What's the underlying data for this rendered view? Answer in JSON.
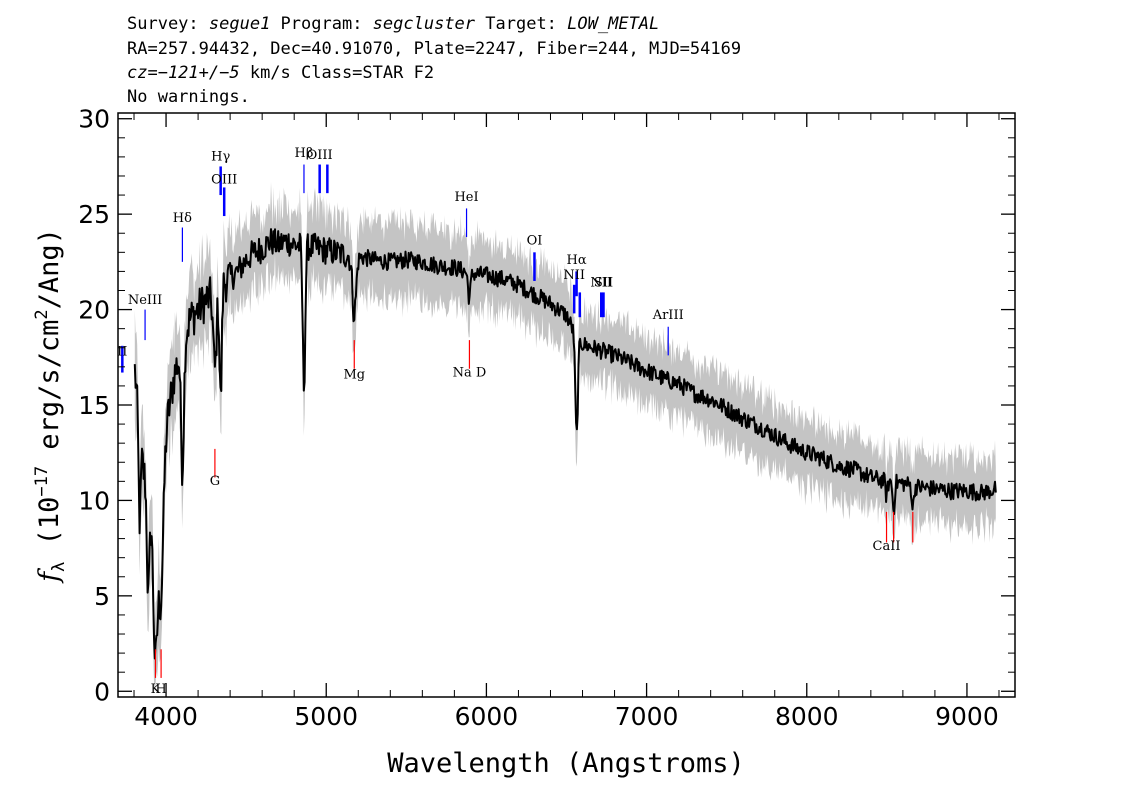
{
  "header": {
    "line1": {
      "survey_label": "Survey: ",
      "survey": "segue1",
      "program_label": " Program: ",
      "program": "segcluster",
      "target_label": " Target: ",
      "target": "LOW_METAL"
    },
    "line2": "RA=257.94432, Dec=40.91070, Plate=2247, Fiber=244, MJD=54169",
    "line3": {
      "cz": "cz=−121+/−5",
      "rest": " km/s Class=STAR F2"
    },
    "line4": "No warnings."
  },
  "chart_data": {
    "type": "line",
    "xlabel": "Wavelength (Angstroms)",
    "ylabel": "f_λ (10^-17 erg/s/cm^2/Ang)",
    "ylabel_parts": {
      "f": "f",
      "sub": "λ",
      "unit_a": " (10",
      "exp": "−17",
      "unit_b": " erg/s/cm",
      "exp2": "2",
      "unit_c": "/Ang)"
    },
    "xlim": [
      3700,
      9300
    ],
    "ylim": [
      -0.3,
      30.3
    ],
    "xticks": [
      4000,
      5000,
      6000,
      7000,
      8000,
      9000
    ],
    "yticks": [
      0,
      5,
      10,
      15,
      20,
      25,
      30
    ],
    "x_minor_step": 200,
    "y_minor_step": 1,
    "spectrum_knots": [
      [
        3805,
        16.8
      ],
      [
        3830,
        14.5
      ],
      [
        3860,
        11.5
      ],
      [
        3900,
        10.2
      ],
      [
        3950,
        12.0
      ],
      [
        4000,
        13.8
      ],
      [
        4050,
        16.5
      ],
      [
        4100,
        18.2
      ],
      [
        4150,
        19.5
      ],
      [
        4200,
        20.0
      ],
      [
        4250,
        20.5
      ],
      [
        4300,
        20.8
      ],
      [
        4350,
        21.3
      ],
      [
        4400,
        21.7
      ],
      [
        4450,
        22.0
      ],
      [
        4500,
        22.6
      ],
      [
        4550,
        23.0
      ],
      [
        4600,
        23.2
      ],
      [
        4650,
        23.6
      ],
      [
        4700,
        23.4
      ],
      [
        4750,
        23.6
      ],
      [
        4800,
        23.4
      ],
      [
        4900,
        23.3
      ],
      [
        5000,
        23.1
      ],
      [
        5100,
        22.9
      ],
      [
        5200,
        22.8
      ],
      [
        5300,
        22.6
      ],
      [
        5400,
        22.5
      ],
      [
        5500,
        22.6
      ],
      [
        5600,
        22.5
      ],
      [
        5700,
        22.3
      ],
      [
        5800,
        22.2
      ],
      [
        5900,
        21.9
      ],
      [
        6000,
        21.8
      ],
      [
        6100,
        21.6
      ],
      [
        6200,
        21.3
      ],
      [
        6300,
        20.8
      ],
      [
        6400,
        20.3
      ],
      [
        6500,
        19.7
      ],
      [
        6560,
        18.6
      ],
      [
        6600,
        18.2
      ],
      [
        6700,
        17.9
      ],
      [
        6800,
        17.6
      ],
      [
        6900,
        17.2
      ],
      [
        7000,
        16.8
      ],
      [
        7100,
        16.4
      ],
      [
        7200,
        16.1
      ],
      [
        7300,
        15.6
      ],
      [
        7400,
        15.3
      ],
      [
        7500,
        14.8
      ],
      [
        7600,
        14.3
      ],
      [
        7700,
        13.9
      ],
      [
        7800,
        13.4
      ],
      [
        7900,
        12.9
      ],
      [
        8000,
        12.5
      ],
      [
        8100,
        12.2
      ],
      [
        8200,
        11.8
      ],
      [
        8300,
        11.6
      ],
      [
        8400,
        11.2
      ],
      [
        8500,
        11.0
      ],
      [
        8600,
        10.9
      ],
      [
        8700,
        10.7
      ],
      [
        8800,
        10.6
      ],
      [
        8900,
        10.5
      ],
      [
        9000,
        10.5
      ],
      [
        9100,
        10.4
      ],
      [
        9180,
        10.6
      ]
    ],
    "absorption_features": [
      {
        "center": 3934,
        "depth": 9.5,
        "width": 14
      },
      {
        "center": 3969,
        "depth": 7.5,
        "width": 14
      },
      {
        "center": 3835,
        "depth": 5.0,
        "width": 7
      },
      {
        "center": 3889,
        "depth": 5.5,
        "width": 8
      },
      {
        "center": 4102,
        "depth": 6.5,
        "width": 9
      },
      {
        "center": 4305,
        "depth": 4.0,
        "width": 10
      },
      {
        "center": 4341,
        "depth": 6.0,
        "width": 7
      },
      {
        "center": 4861,
        "depth": 7.3,
        "width": 8
      },
      {
        "center": 5175,
        "depth": 3.0,
        "width": 12
      },
      {
        "center": 5893,
        "depth": 1.3,
        "width": 8
      },
      {
        "center": 6563,
        "depth": 5.2,
        "width": 8
      },
      {
        "center": 8498,
        "depth": 0.8,
        "width": 6
      },
      {
        "center": 8542,
        "depth": 1.5,
        "width": 6
      },
      {
        "center": 8662,
        "depth": 1.2,
        "width": 6
      }
    ],
    "series": [
      {
        "role": "flux",
        "color": "#000000"
      },
      {
        "role": "error_band",
        "color": "#c4c4c4"
      }
    ],
    "emission_lines": [
      {
        "label": "",
        "wavelength": 3727,
        "y0": 16.7,
        "y1": 18.1,
        "label_y": null,
        "color": "#0000ff",
        "thick": true
      },
      {
        "label": "II",
        "wavelength": 3727,
        "y0": null,
        "y1": null,
        "label_y": 17.6,
        "color": "#0000ff",
        "thick": true
      },
      {
        "label": "NeIII",
        "wavelength": 3869,
        "y0": 18.4,
        "y1": 20.0,
        "label_y": 20.3,
        "color": "#0000ff",
        "thick": false
      },
      {
        "label": "Hδ",
        "wavelength": 4102,
        "y0": 22.5,
        "y1": 24.3,
        "label_y": 24.6,
        "color": "#0000ff",
        "thick": false
      },
      {
        "label": "Hγ",
        "wavelength": 4341,
        "y0": 26.0,
        "y1": 27.5,
        "label_y": 27.8,
        "color": "#0000ff",
        "thick": true
      },
      {
        "label": "OIII",
        "wavelength": 4363,
        "y0": 24.9,
        "y1": 26.4,
        "label_y": 26.6,
        "color": "#0000ff",
        "thick": true
      },
      {
        "label": "Hβ",
        "wavelength": 4861,
        "y0": 26.1,
        "y1": 27.6,
        "label_y": 28.0,
        "color": "#0000ff",
        "thick": false
      },
      {
        "label": "OIII",
        "wavelength": 4959,
        "y0": 26.1,
        "y1": 27.6,
        "label_y": 27.9,
        "color": "#0000ff",
        "thick": true
      },
      {
        "label": "",
        "wavelength": 5007,
        "y0": 26.1,
        "y1": 27.6,
        "label_y": null,
        "color": "#0000ff",
        "thick": true
      },
      {
        "label": "HeI",
        "wavelength": 5876,
        "y0": 23.8,
        "y1": 25.3,
        "label_y": 25.7,
        "color": "#0000ff",
        "thick": false
      },
      {
        "label": "OI",
        "wavelength": 6300,
        "y0": 21.5,
        "y1": 23.0,
        "label_y": 23.4,
        "color": "#0000ff",
        "thick": true
      },
      {
        "label": "NII",
        "wavelength": 6548,
        "y0": 19.8,
        "y1": 21.3,
        "label_y": 21.6,
        "color": "#0000ff",
        "thick": true
      },
      {
        "label": "Hα",
        "wavelength": 6563,
        "y0": 20.7,
        "y1": 22.0,
        "label_y": 22.4,
        "color": "#0000ff",
        "thick": true
      },
      {
        "label": "",
        "wavelength": 6583,
        "y0": 19.6,
        "y1": 20.9,
        "label_y": null,
        "color": "#0000ff",
        "thick": true
      },
      {
        "label": "NII",
        "wavelength": 6717,
        "y0": 19.6,
        "y1": 20.9,
        "label_y": 21.2,
        "color": "#0000ff",
        "thick": true
      },
      {
        "label": "SII",
        "wavelength": 6731,
        "y0": 19.6,
        "y1": 20.9,
        "label_y": 21.2,
        "color": "#0000ff",
        "thick": true
      },
      {
        "label": "ArIII",
        "wavelength": 7135,
        "y0": 17.6,
        "y1": 19.1,
        "label_y": 19.5,
        "color": "#0000ff",
        "thick": false
      }
    ],
    "absorption_lines": [
      {
        "label": "K",
        "wavelength": 3934,
        "y0": 0.7,
        "y1": 2.2,
        "label_y": -0.1,
        "color": "#ff0000"
      },
      {
        "label": "H",
        "wavelength": 3969,
        "y0": 0.7,
        "y1": 2.2,
        "label_y": -0.1,
        "color": "#ff0000"
      },
      {
        "label": "G",
        "wavelength": 4305,
        "y0": 11.2,
        "y1": 12.7,
        "label_y": 10.8,
        "color": "#ff0000"
      },
      {
        "label": "Mg",
        "wavelength": 5175,
        "y0": 16.9,
        "y1": 18.4,
        "label_y": 16.4,
        "color": "#ff0000"
      },
      {
        "label": "Na D",
        "wavelength": 5894,
        "y0": 16.9,
        "y1": 18.4,
        "label_y": 16.5,
        "color": "#ff0000"
      },
      {
        "label": "CaII",
        "wavelength": 8498,
        "y0": 7.8,
        "y1": 9.4,
        "label_y": 7.4,
        "color": "#ff0000"
      },
      {
        "label": "",
        "wavelength": 8542,
        "y0": 7.8,
        "y1": 9.4,
        "label_y": null,
        "color": "#ff0000"
      },
      {
        "label": "",
        "wavelength": 8662,
        "y0": 7.8,
        "y1": 9.4,
        "label_y": null,
        "color": "#ff0000"
      }
    ]
  }
}
